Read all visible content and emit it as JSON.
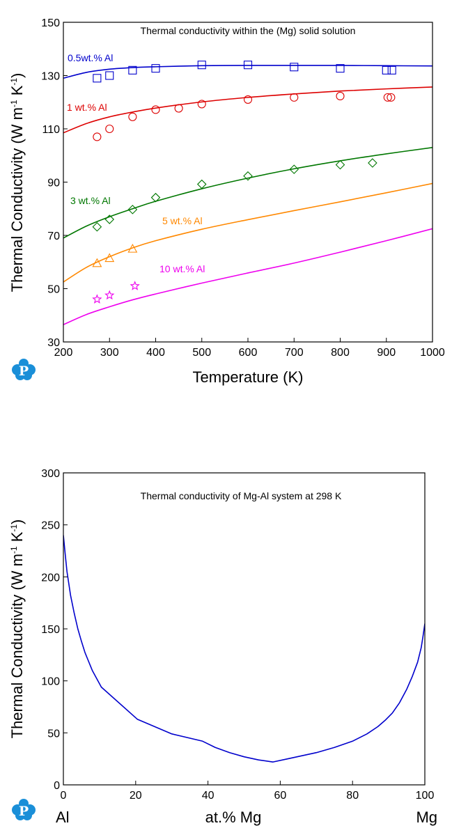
{
  "logo": {
    "letter": "P"
  },
  "chart_data": [
    {
      "type": "line",
      "title": "Thermal conductivity within the (Mg) solid solution",
      "xlabel": "Temperature (K)",
      "ylabel": {
        "main": "Thermal Conductivity (W m",
        "sup1": "-1",
        "mid": " K",
        "sup2": "-1",
        "end": ")"
      },
      "xlim": [
        200,
        1000
      ],
      "ylim": [
        30,
        150
      ],
      "xticks": [
        200,
        300,
        400,
        500,
        600,
        700,
        800,
        900,
        1000
      ],
      "yticks": [
        30,
        50,
        70,
        90,
        110,
        130,
        150
      ],
      "grid": false,
      "series": [
        {
          "name": "0.5wt.% Al",
          "color": "#0000cc",
          "marker": "square",
          "curve": {
            "x": [
              200,
              250,
              300,
              350,
              400,
              500,
              600,
              700,
              800,
              900,
              1000
            ],
            "y": [
              129,
              131.2,
              132.4,
              133.0,
              133.3,
              133.7,
              133.8,
              133.8,
              133.8,
              133.7,
              133.6
            ]
          },
          "points": {
            "x": [
              273,
              300,
              350,
              400,
              500,
              600,
              700,
              800,
              900,
              912
            ],
            "y": [
              129,
              130,
              132,
              132.7,
              134,
              134,
              133.2,
              132.7,
              132,
              132
            ]
          }
        },
        {
          "name": "1 wt.% Al",
          "color": "#dd0000",
          "marker": "circle",
          "curve": {
            "x": [
              200,
              250,
              300,
              350,
              400,
              500,
              600,
              700,
              800,
              900,
              1000
            ],
            "y": [
              108.5,
              112,
              114.5,
              116.3,
              117.8,
              120.1,
              121.8,
              123.1,
              124.2,
              125,
              125.7
            ]
          },
          "points": {
            "x": [
              273,
              300,
              350,
              400,
              450,
              500,
              600,
              700,
              800,
              903,
              910
            ],
            "y": [
              107,
              110,
              114.5,
              117.2,
              117.7,
              119.3,
              121,
              121.8,
              122.3,
              121.8,
              121.8
            ]
          }
        },
        {
          "name": "3 wt.% Al",
          "color": "#007700",
          "marker": "diamond",
          "curve": {
            "x": [
              200,
              250,
              300,
              350,
              400,
              500,
              600,
              700,
              800,
              900,
              1000
            ],
            "y": [
              69,
              73.5,
              77,
              80,
              82.8,
              87.5,
              91.5,
              95,
              98,
              100.6,
              103
            ]
          },
          "points": {
            "x": [
              273,
              300,
              350,
              400,
              500,
              600,
              700,
              800,
              870
            ],
            "y": [
              73.2,
              76,
              79.7,
              84.2,
              89.2,
              92.3,
              94.8,
              96.5,
              97.2
            ]
          }
        },
        {
          "name": "5 wt.% Al",
          "color": "#ff8800",
          "marker": "triangle",
          "curve": {
            "x": [
              200,
              250,
              300,
              350,
              400,
              500,
              600,
              700,
              800,
              900,
              1000
            ],
            "y": [
              52.5,
              58,
              62,
              65.3,
              68,
              72.3,
              75.9,
              79.3,
              82.6,
              86,
              89.5
            ]
          },
          "points": {
            "x": [
              273,
              300,
              350
            ],
            "y": [
              59.6,
              61.5,
              65
            ]
          }
        },
        {
          "name": "10 wt.% Al",
          "color": "#ee00ee",
          "marker": "star",
          "curve": {
            "x": [
              200,
              250,
              300,
              350,
              400,
              500,
              600,
              700,
              800,
              900,
              1000
            ],
            "y": [
              36.5,
              40.3,
              43.2,
              45.8,
              48,
              52.1,
              55.9,
              59.6,
              63.7,
              68,
              72.5
            ]
          },
          "points": {
            "x": [
              273,
              300,
              355
            ],
            "y": [
              46,
              47.5,
              51
            ]
          }
        }
      ]
    },
    {
      "type": "line",
      "title": "Thermal conductivity of Mg-Al system at 298 K",
      "xlabel": "at.% Mg",
      "xlabel_left": "Al",
      "xlabel_right": "Mg",
      "ylabel": {
        "main": "Thermal Conductivity (W m",
        "sup1": "-1",
        "mid": " K",
        "sup2": "-1",
        "end": ")"
      },
      "xlim": [
        0,
        100
      ],
      "ylim": [
        0,
        300
      ],
      "xticks": [
        0,
        20,
        40,
        60,
        80,
        100
      ],
      "yticks": [
        0,
        50,
        100,
        150,
        200,
        250,
        300
      ],
      "grid": false,
      "series": [
        {
          "color": "#0000cc",
          "x": [
            0,
            0.5,
            1,
            2,
            3,
            4,
            5,
            6,
            8,
            10.5,
            20.5,
            30,
            38.5,
            42,
            46,
            50,
            54,
            58,
            62,
            66,
            70,
            75,
            80,
            84,
            87,
            89,
            91,
            93,
            95,
            96.5,
            98,
            99,
            99.5,
            100
          ],
          "y": [
            240,
            222,
            205,
            182,
            165,
            150,
            138,
            127,
            110,
            94,
            63,
            49,
            42,
            36,
            31,
            27,
            24,
            22,
            25,
            28,
            31,
            36,
            42,
            49,
            56,
            62,
            69,
            79,
            92,
            104,
            118,
            132,
            143,
            155
          ]
        }
      ]
    }
  ]
}
